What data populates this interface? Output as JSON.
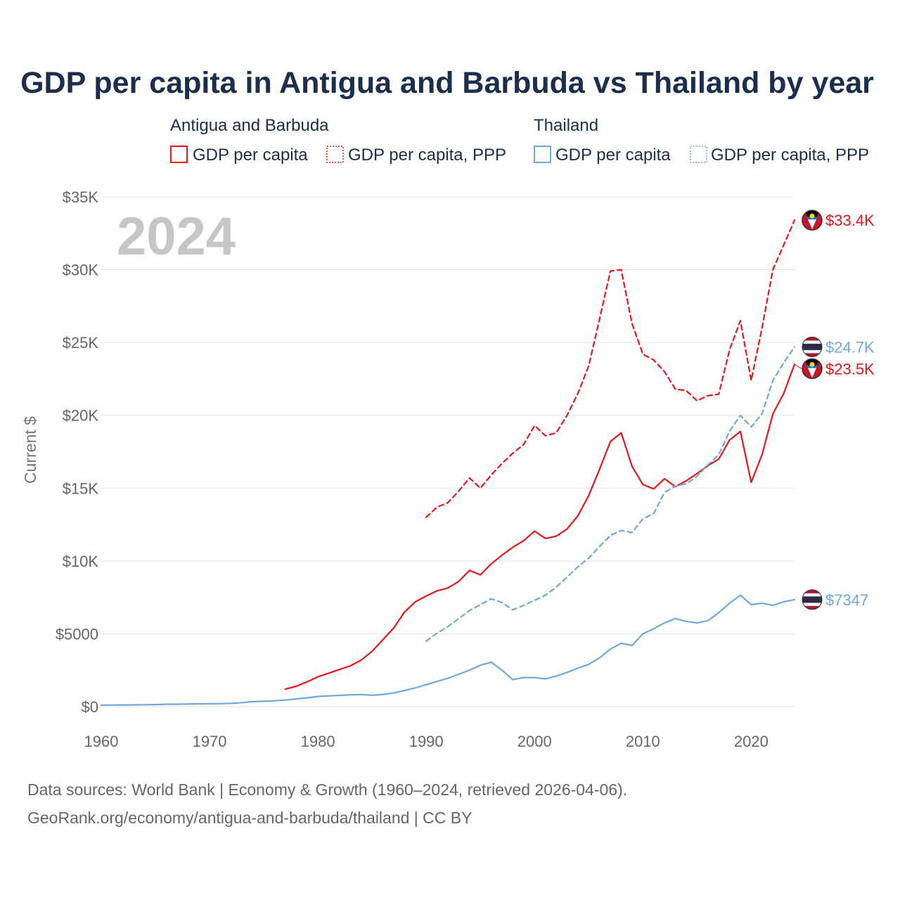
{
  "chart_data": {
    "type": "line",
    "title": "GDP per capita in Antigua and Barbuda vs Thailand by year",
    "year_label": "2024",
    "ylabel": "Current $",
    "xlim": [
      1960,
      2024
    ],
    "ylim": [
      0,
      35000
    ],
    "x_ticks": [
      1960,
      1970,
      1980,
      1990,
      2000,
      2010,
      2020
    ],
    "x_tick_labels": [
      "1960",
      "1970",
      "1980",
      "1990",
      "2000",
      "2010",
      "2020"
    ],
    "y_ticks": [
      0,
      5000,
      10000,
      15000,
      20000,
      25000,
      30000,
      35000
    ],
    "y_tick_labels": [
      "$0",
      "$5000",
      "$10K",
      "$15K",
      "$20K",
      "$25K",
      "$30K",
      "$35K"
    ],
    "legend": {
      "groups": [
        {
          "name": "Antigua and Barbuda",
          "color": "#e8161b",
          "items": [
            "GDP per capita",
            "GDP per capita, PPP"
          ]
        },
        {
          "name": "Thailand",
          "color": "#6fa8dc",
          "items": [
            "GDP per capita",
            "GDP per capita, PPP"
          ]
        }
      ]
    },
    "series": [
      {
        "name": "Antigua and Barbuda GDP per capita",
        "country": "Antigua and Barbuda",
        "color": "#e8161b",
        "dashed": false,
        "end_label": "$23.5K",
        "x": [
          1977,
          1978,
          1979,
          1980,
          1981,
          1982,
          1983,
          1984,
          1985,
          1986,
          1987,
          1988,
          1989,
          1990,
          1991,
          1992,
          1993,
          1994,
          1995,
          1996,
          1997,
          1998,
          1999,
          2000,
          2001,
          2002,
          2003,
          2004,
          2005,
          2006,
          2007,
          2008,
          2009,
          2010,
          2011,
          2012,
          2013,
          2014,
          2015,
          2016,
          2017,
          2018,
          2019,
          2020,
          2021,
          2022,
          2023,
          2024
        ],
        "y": [
          1200,
          1400,
          1700,
          2050,
          2300,
          2550,
          2800,
          3200,
          3800,
          4600,
          5400,
          6500,
          7200,
          7600,
          7950,
          8150,
          8600,
          9350,
          9050,
          9800,
          10400,
          10950,
          11400,
          12050,
          11550,
          11700,
          12200,
          13100,
          14500,
          16300,
          18200,
          18800,
          16500,
          15250,
          14950,
          15650,
          15100,
          15500,
          16000,
          16550,
          17000,
          18300,
          18900,
          15400,
          17300,
          20100,
          21500,
          23500
        ]
      },
      {
        "name": "Antigua and Barbuda GDP per capita, PPP",
        "country": "Antigua and Barbuda",
        "color": "#e8161b",
        "dashed": true,
        "end_label": "$33.4K",
        "x": [
          1990,
          1991,
          1992,
          1993,
          1994,
          1995,
          1996,
          1997,
          1998,
          1999,
          2000,
          2001,
          2002,
          2003,
          2004,
          2005,
          2006,
          2007,
          2008,
          2009,
          2010,
          2011,
          2012,
          2013,
          2014,
          2015,
          2016,
          2017,
          2018,
          2019,
          2020,
          2021,
          2022,
          2023,
          2024
        ],
        "y": [
          13000,
          13700,
          14000,
          14800,
          15700,
          15000,
          15900,
          16700,
          17400,
          18000,
          19300,
          18600,
          18800,
          20000,
          21500,
          23400,
          26600,
          29900,
          30000,
          26300,
          24200,
          23800,
          23000,
          21800,
          21700,
          21000,
          21350,
          21450,
          24500,
          26500,
          22400,
          26000,
          30000,
          31700,
          33400
        ]
      },
      {
        "name": "Thailand GDP per capita",
        "country": "Thailand",
        "color": "#6fa8dc",
        "dashed": false,
        "end_label": "$7347",
        "x": [
          1960,
          1961,
          1962,
          1963,
          1964,
          1965,
          1966,
          1967,
          1968,
          1969,
          1970,
          1971,
          1972,
          1973,
          1974,
          1975,
          1976,
          1977,
          1978,
          1979,
          1980,
          1981,
          1982,
          1983,
          1984,
          1985,
          1986,
          1987,
          1988,
          1989,
          1990,
          1991,
          1992,
          1993,
          1994,
          1995,
          1996,
          1997,
          1998,
          1999,
          2000,
          2001,
          2002,
          2003,
          2004,
          2005,
          2006,
          2007,
          2008,
          2009,
          2010,
          2011,
          2012,
          2013,
          2014,
          2015,
          2016,
          2017,
          2018,
          2019,
          2020,
          2021,
          2022,
          2023,
          2024
        ],
        "y": [
          101,
          108,
          116,
          122,
          131,
          141,
          162,
          170,
          180,
          192,
          198,
          203,
          220,
          275,
          345,
          365,
          405,
          455,
          530,
          605,
          700,
          740,
          770,
          810,
          830,
          780,
          840,
          940,
          1110,
          1290,
          1510,
          1730,
          1950,
          2220,
          2500,
          2850,
          3050,
          2500,
          1850,
          2000,
          2000,
          1900,
          2100,
          2350,
          2650,
          2900,
          3350,
          3950,
          4350,
          4200,
          5000,
          5350,
          5750,
          6050,
          5850,
          5750,
          5900,
          6450,
          7100,
          7650,
          7000,
          7100,
          6950,
          7200,
          7347
        ]
      },
      {
        "name": "Thailand GDP per capita, PPP",
        "country": "Thailand",
        "color": "#6fa8dc",
        "dashed": true,
        "end_label": "$24.7K",
        "x": [
          1990,
          1991,
          1992,
          1993,
          1994,
          1995,
          1996,
          1997,
          1998,
          1999,
          2000,
          2001,
          2002,
          2003,
          2004,
          2005,
          2006,
          2007,
          2008,
          2009,
          2010,
          2011,
          2012,
          2013,
          2014,
          2015,
          2016,
          2017,
          2018,
          2019,
          2020,
          2021,
          2022,
          2023,
          2024
        ],
        "y": [
          4500,
          5050,
          5500,
          6050,
          6600,
          7000,
          7400,
          7150,
          6650,
          6950,
          7300,
          7650,
          8200,
          8900,
          9600,
          10200,
          11000,
          11750,
          12100,
          11950,
          12900,
          13250,
          14700,
          15150,
          15300,
          15800,
          16600,
          17300,
          18900,
          20000,
          19200,
          20100,
          22400,
          23600,
          24700
        ]
      }
    ]
  },
  "source": {
    "line1": "Data sources: World Bank | Economy & Growth (1960–2024, retrieved 2026-04-06).",
    "line2": "GeoRank.org/economy/antigua-and-barbuda/thailand | CC BY"
  },
  "flags": [
    {
      "country": "Antigua and Barbuda",
      "icon": "antigua-flag-icon"
    },
    {
      "country": "Thailand",
      "icon": "thailand-flag-icon"
    }
  ]
}
